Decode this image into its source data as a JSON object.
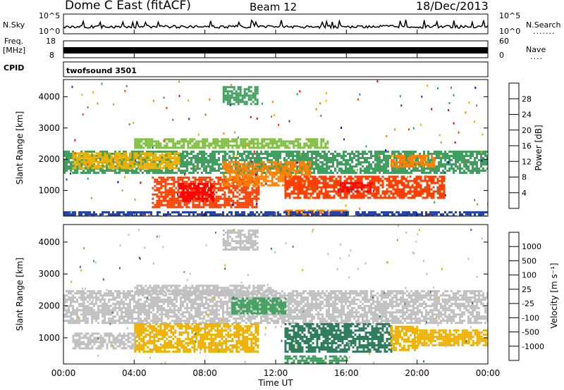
{
  "header": {
    "station": "Dome C East (fitACF)",
    "beam": "Beam 12",
    "date": "18/Dec/2013"
  },
  "summary_panels": {
    "nsky_label": "N.Sky",
    "nsky_ticks": [
      "10^5",
      "10^0"
    ],
    "nsearch_label": "N.Search",
    "nsearch_ticks": [
      "10^5",
      "10^0"
    ],
    "freq_label": "Freq.",
    "freq_unit": "[MHz]",
    "freq_ticks": [
      "18",
      "8"
    ],
    "nave_label": "Nave",
    "nave_ticks": [
      "60",
      "0"
    ],
    "cpid_label": "CPID",
    "cpid_value": "twofsound 3501"
  },
  "colors": {
    "power_scale": [
      "#0000ff",
      "#1f3fb0",
      "#3f8f8f",
      "#3f9f5f",
      "#7fbf3f",
      "#f0b000",
      "#ff7f00",
      "#ff3f00",
      "#ff0000"
    ],
    "velocity_scale": [
      "#1f3fb0",
      "#1f5fbf",
      "#2f7f5f",
      "#3f9f5f",
      "#5fbf3f",
      "#c0c0c0",
      "#f0b000",
      "#ff7f00",
      "#ff3f00",
      "#ff0000"
    ],
    "ground_scatter": "#c0c0c0"
  },
  "chart_data": [
    {
      "type": "heatmap",
      "panel": "power",
      "ylabel": "Slant Range [km]",
      "yticks": [
        "1000",
        "2000",
        "3000",
        "4000"
      ],
      "ylim": [
        180,
        4550
      ],
      "xticks": [
        "00:00",
        "04:00",
        "08:00",
        "12:00",
        "16:00",
        "20:00",
        "00:00"
      ],
      "xlim_hours": [
        0,
        24
      ],
      "colorbar_label": "Power [dB]",
      "colorbar_ticks": [
        "4",
        "8",
        "12",
        "16",
        "20",
        "24",
        "28"
      ],
      "zlim": [
        0,
        30
      ],
      "regions": [
        {
          "t0": 0.0,
          "t1": 24.0,
          "r0": 1600,
          "r1": 2300,
          "level": 12
        },
        {
          "t0": 0.5,
          "t1": 6.5,
          "r0": 1750,
          "r1": 2250,
          "level": 18
        },
        {
          "t0": 5.0,
          "t1": 11.0,
          "r0": 500,
          "r1": 1500,
          "level": 26
        },
        {
          "t0": 6.5,
          "t1": 8.5,
          "r0": 700,
          "r1": 1300,
          "level": 29
        },
        {
          "t0": 9.0,
          "t1": 14.0,
          "r0": 1200,
          "r1": 2000,
          "level": 20
        },
        {
          "t0": 12.5,
          "t1": 21.5,
          "r0": 800,
          "r1": 1500,
          "level": 24
        },
        {
          "t0": 15.5,
          "t1": 17.5,
          "r0": 1000,
          "r1": 1300,
          "level": 28
        },
        {
          "t0": 18.5,
          "t1": 21.0,
          "r0": 1800,
          "r1": 2200,
          "level": 22
        },
        {
          "t0": 12.5,
          "t1": 16.0,
          "r0": 250,
          "r1": 450,
          "level": 22
        },
        {
          "t0": 0.0,
          "t1": 24.0,
          "r0": 200,
          "r1": 350,
          "level": 6
        },
        {
          "t0": 4.0,
          "t1": 15.0,
          "r0": 2400,
          "r1": 2700,
          "level": 14
        },
        {
          "t0": 9.0,
          "t1": 11.0,
          "r0": 3800,
          "r1": 4400,
          "level": 10
        }
      ]
    },
    {
      "type": "heatmap",
      "panel": "velocity",
      "ylabel": "Slant Range [km]",
      "yticks": [
        "1000",
        "2000",
        "3000",
        "4000"
      ],
      "ylim": [
        180,
        4550
      ],
      "xlabel": "Time UT",
      "xticks": [
        "00:00",
        "04:00",
        "08:00",
        "12:00",
        "16:00",
        "20:00",
        "00:00"
      ],
      "xlim_hours": [
        0,
        24
      ],
      "colorbar_label": "Velocity [m s⁻¹]",
      "colorbar_ticks": [
        "1000",
        "500",
        "100",
        "25",
        "-25",
        "-100",
        "-500",
        "-1000"
      ],
      "regions": [
        {
          "t0": 0.0,
          "t1": 24.0,
          "r0": 1500,
          "r1": 2500,
          "level": "ground"
        },
        {
          "t0": 4.0,
          "t1": 11.0,
          "r0": 600,
          "r1": 1500,
          "level": -150
        },
        {
          "t0": 0.5,
          "t1": 4.0,
          "r0": 700,
          "r1": 1200,
          "level": -80
        },
        {
          "t0": 12.5,
          "t1": 18.5,
          "r0": 600,
          "r1": 1500,
          "level": 150
        },
        {
          "t0": 12.5,
          "t1": 16.0,
          "r0": 250,
          "r1": 450,
          "level": 60
        },
        {
          "t0": 18.5,
          "t1": 20.0,
          "r0": 650,
          "r1": 1400,
          "level": -300
        },
        {
          "t0": 20.0,
          "t1": 24.0,
          "r0": 800,
          "r1": 1300,
          "level": -120
        },
        {
          "t0": 9.5,
          "t1": 12.5,
          "r0": 1800,
          "r1": 2300,
          "level": 40
        },
        {
          "t0": 4.0,
          "t1": 12.0,
          "r0": 2400,
          "r1": 2700,
          "level": "ground"
        },
        {
          "t0": 9.0,
          "t1": 11.0,
          "r0": 3800,
          "r1": 4400,
          "level": "ground"
        }
      ]
    }
  ]
}
